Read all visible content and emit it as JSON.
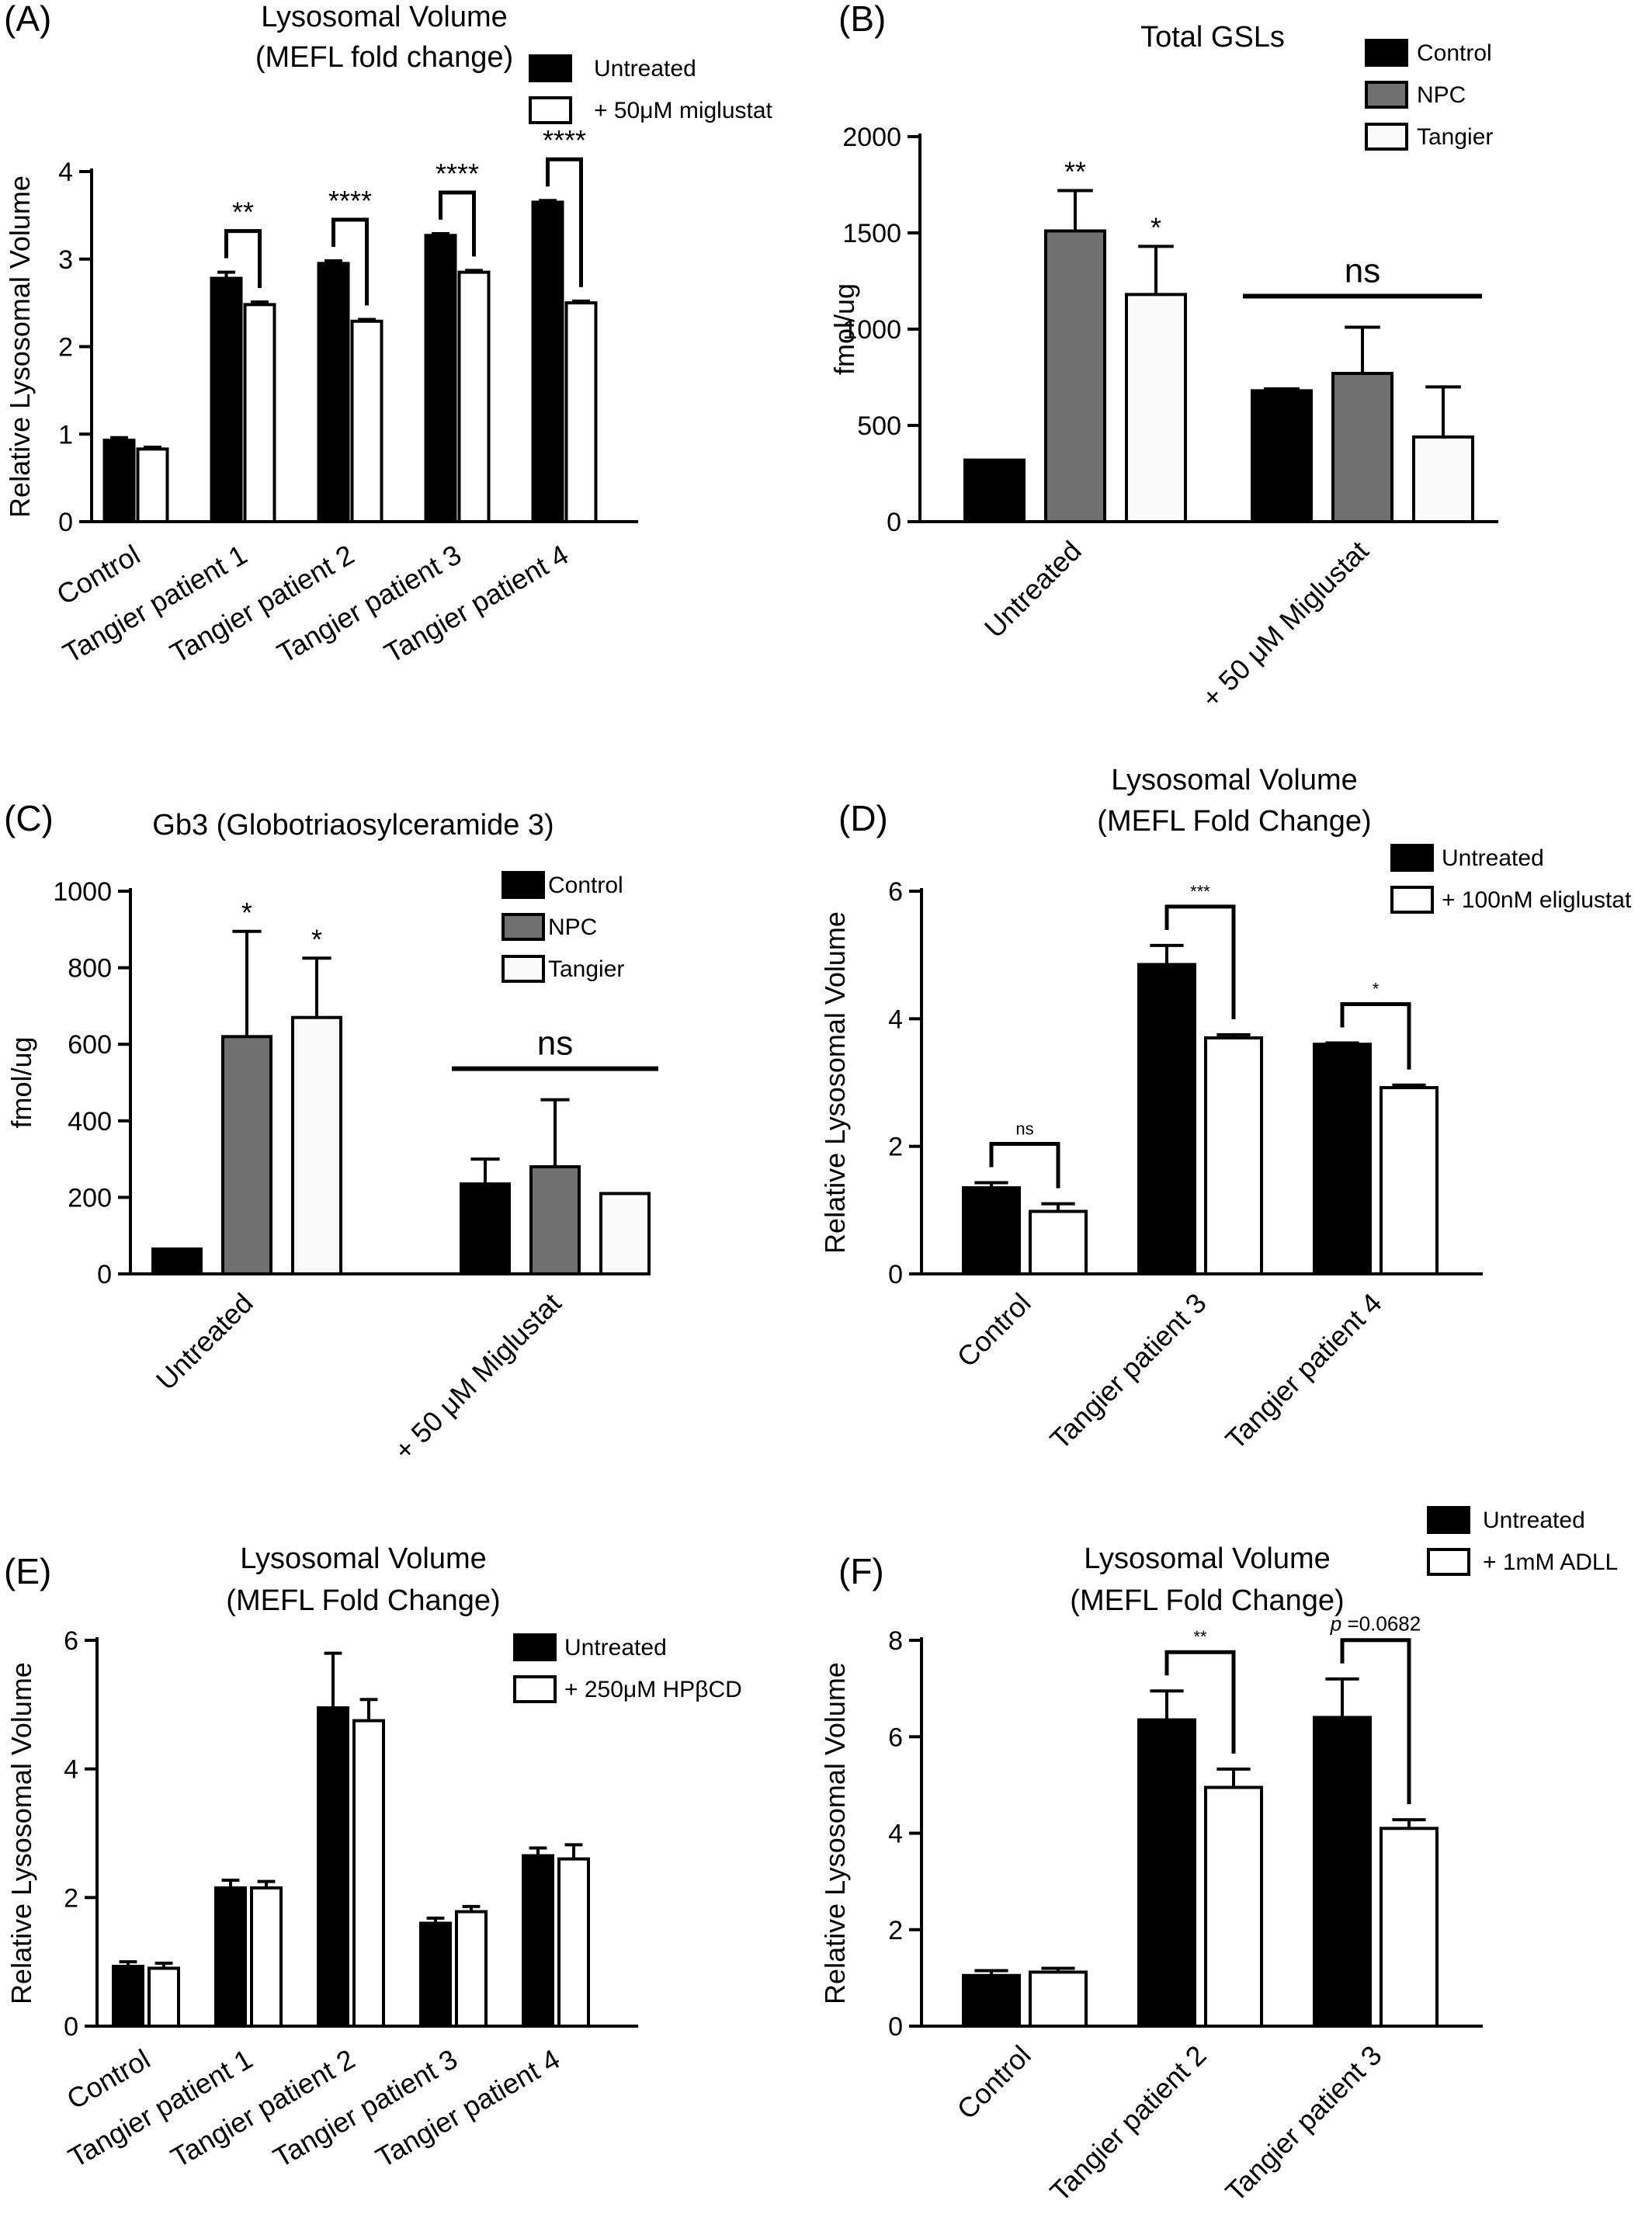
{
  "figure": {
    "panels": [
      "(A)",
      "(B)",
      "(C)",
      "(D)",
      "(E)",
      "(F)"
    ]
  },
  "chart_data": [
    {
      "panel": "(A)",
      "type": "bar",
      "title": "Lysosomal Volume",
      "subtitle": "(MEFL fold change)",
      "xlabel": "",
      "ylabel": "Relative Lysosomal Volume",
      "ylim": [
        0,
        4
      ],
      "yticks": [
        "0",
        "1",
        "2",
        "3",
        "4"
      ],
      "categories": [
        "Control",
        "Tangier patient 1",
        "Tangier patient 2",
        "Tangier patient 3",
        "Tangier patient 4"
      ],
      "series": [
        {
          "name": "Untreated",
          "color": "#000000",
          "values": [
            0.93,
            2.78,
            2.95,
            3.27,
            3.65
          ],
          "errors": [
            0.03,
            0.07,
            0.03,
            0.02,
            0.02
          ]
        },
        {
          "name": "+ 50μM miglustat",
          "color": "#ffffff",
          "values": [
            0.83,
            2.48,
            2.29,
            2.85,
            2.5
          ],
          "errors": [
            0.02,
            0.03,
            0.02,
            0.02,
            0.02
          ]
        }
      ],
      "significance": [
        {
          "category": 1,
          "label": "**"
        },
        {
          "category": 2,
          "label": "****"
        },
        {
          "category": 3,
          "label": "****"
        },
        {
          "category": 4,
          "label": "****"
        }
      ],
      "legend": "top-right",
      "grid": false
    },
    {
      "panel": "(B)",
      "type": "bar",
      "title": "Total GSLs",
      "xlabel": "",
      "ylabel": "fmol/ug",
      "ylim": [
        0,
        2000
      ],
      "yticks": [
        "0",
        "500",
        "1000",
        "1500",
        "2000"
      ],
      "categories": [
        "Untreated",
        "+ 50 μM Miglustat"
      ],
      "series": [
        {
          "name": "Control",
          "color": "#000000",
          "values": [
            320,
            680
          ],
          "errors": [
            0,
            10
          ]
        },
        {
          "name": "NPC",
          "color": "#707070",
          "values": [
            1510,
            770
          ],
          "errors": [
            210,
            240
          ]
        },
        {
          "name": "Tangier",
          "color": "#fafafa",
          "values": [
            1180,
            440
          ],
          "errors": [
            250,
            260
          ]
        }
      ],
      "significance": [
        {
          "category": 0,
          "series": 1,
          "label": "**"
        },
        {
          "category": 0,
          "series": 2,
          "label": "*"
        },
        {
          "category": 1,
          "label": "ns"
        }
      ],
      "legend": "top-right",
      "grid": false
    },
    {
      "panel": "(C)",
      "type": "bar",
      "title": "Gb3 (Globotriaosylceramide 3)",
      "xlabel": "",
      "ylabel": "fmol/ug",
      "ylim": [
        0,
        1000
      ],
      "yticks": [
        "0",
        "200",
        "400",
        "600",
        "800",
        "1000"
      ],
      "categories": [
        "Untreated",
        "+ 50 μM Miglustat"
      ],
      "series": [
        {
          "name": "Control",
          "color": "#000000",
          "values": [
            65,
            235
          ],
          "errors": [
            0,
            65
          ]
        },
        {
          "name": "NPC",
          "color": "#707070",
          "values": [
            620,
            280
          ],
          "errors": [
            275,
            175
          ]
        },
        {
          "name": "Tangier",
          "color": "#fafafa",
          "values": [
            670,
            210
          ],
          "errors": [
            155,
            0
          ]
        }
      ],
      "significance": [
        {
          "category": 0,
          "series": 1,
          "label": "*"
        },
        {
          "category": 0,
          "series": 2,
          "label": "*"
        },
        {
          "category": 1,
          "label": "ns"
        }
      ],
      "legend": "top-right",
      "grid": false
    },
    {
      "panel": "(D)",
      "type": "bar",
      "title": "Lysosomal Volume",
      "subtitle": "(MEFL Fold Change)",
      "xlabel": "",
      "ylabel": "Relative Lysosomal Volume",
      "ylim": [
        0,
        6
      ],
      "yticks": [
        "0",
        "2",
        "4",
        "6"
      ],
      "categories": [
        "Control",
        "Tangier patient 3",
        "Tangier patient 4"
      ],
      "series": [
        {
          "name": "Untreated",
          "color": "#000000",
          "values": [
            1.35,
            4.85,
            3.6
          ],
          "errors": [
            0.08,
            0.3,
            0.02
          ]
        },
        {
          "name": "+ 100nM eliglustat",
          "color": "#ffffff",
          "values": [
            0.98,
            3.7,
            2.92
          ],
          "errors": [
            0.12,
            0.05,
            0.04
          ]
        }
      ],
      "significance": [
        {
          "category": 0,
          "label": "ns"
        },
        {
          "category": 1,
          "label": "***"
        },
        {
          "category": 2,
          "label": "*"
        }
      ],
      "legend": "top-right",
      "grid": false
    },
    {
      "panel": "(E)",
      "type": "bar",
      "title": "Lysosomal Volume",
      "subtitle": "(MEFL Fold Change)",
      "xlabel": "",
      "ylabel": "Relative Lysosomal Volume",
      "ylim": [
        0,
        6
      ],
      "yticks": [
        "0",
        "2",
        "4",
        "6"
      ],
      "categories": [
        "Control",
        "Tangier patient 1",
        "Tangier patient 2",
        "Tangier patient 3",
        "Tangier patient 4"
      ],
      "series": [
        {
          "name": "Untreated",
          "color": "#000000",
          "values": [
            0.93,
            2.15,
            4.95,
            1.6,
            2.65
          ],
          "errors": [
            0.07,
            0.12,
            0.85,
            0.08,
            0.12
          ]
        },
        {
          "name": "+ 250μM HPβCD",
          "color": "#ffffff",
          "values": [
            0.9,
            2.15,
            4.75,
            1.78,
            2.6
          ],
          "errors": [
            0.08,
            0.1,
            0.33,
            0.08,
            0.22
          ]
        }
      ],
      "significance": [],
      "legend": "top-right",
      "grid": false
    },
    {
      "panel": "(F)",
      "type": "bar",
      "title": "Lysosomal Volume",
      "subtitle": "(MEFL Fold Change)",
      "xlabel": "",
      "ylabel": "Relative Lysosomal Volume",
      "ylim": [
        0,
        8
      ],
      "yticks": [
        "0",
        "2",
        "4",
        "6",
        "8"
      ],
      "categories": [
        "Control",
        "Tangier patient 2",
        "Tangier patient 3"
      ],
      "series": [
        {
          "name": "Untreated",
          "color": "#000000",
          "values": [
            1.05,
            6.35,
            6.4
          ],
          "errors": [
            0.1,
            0.6,
            0.8
          ]
        },
        {
          "name": "+ 1mM ADLL",
          "color": "#ffffff",
          "values": [
            1.12,
            4.95,
            4.1
          ],
          "errors": [
            0.08,
            0.38,
            0.18
          ]
        }
      ],
      "significance": [
        {
          "category": 1,
          "label": "**"
        },
        {
          "category": 2,
          "label": "p =0.0682"
        }
      ],
      "legend": "top-right",
      "grid": false
    }
  ]
}
